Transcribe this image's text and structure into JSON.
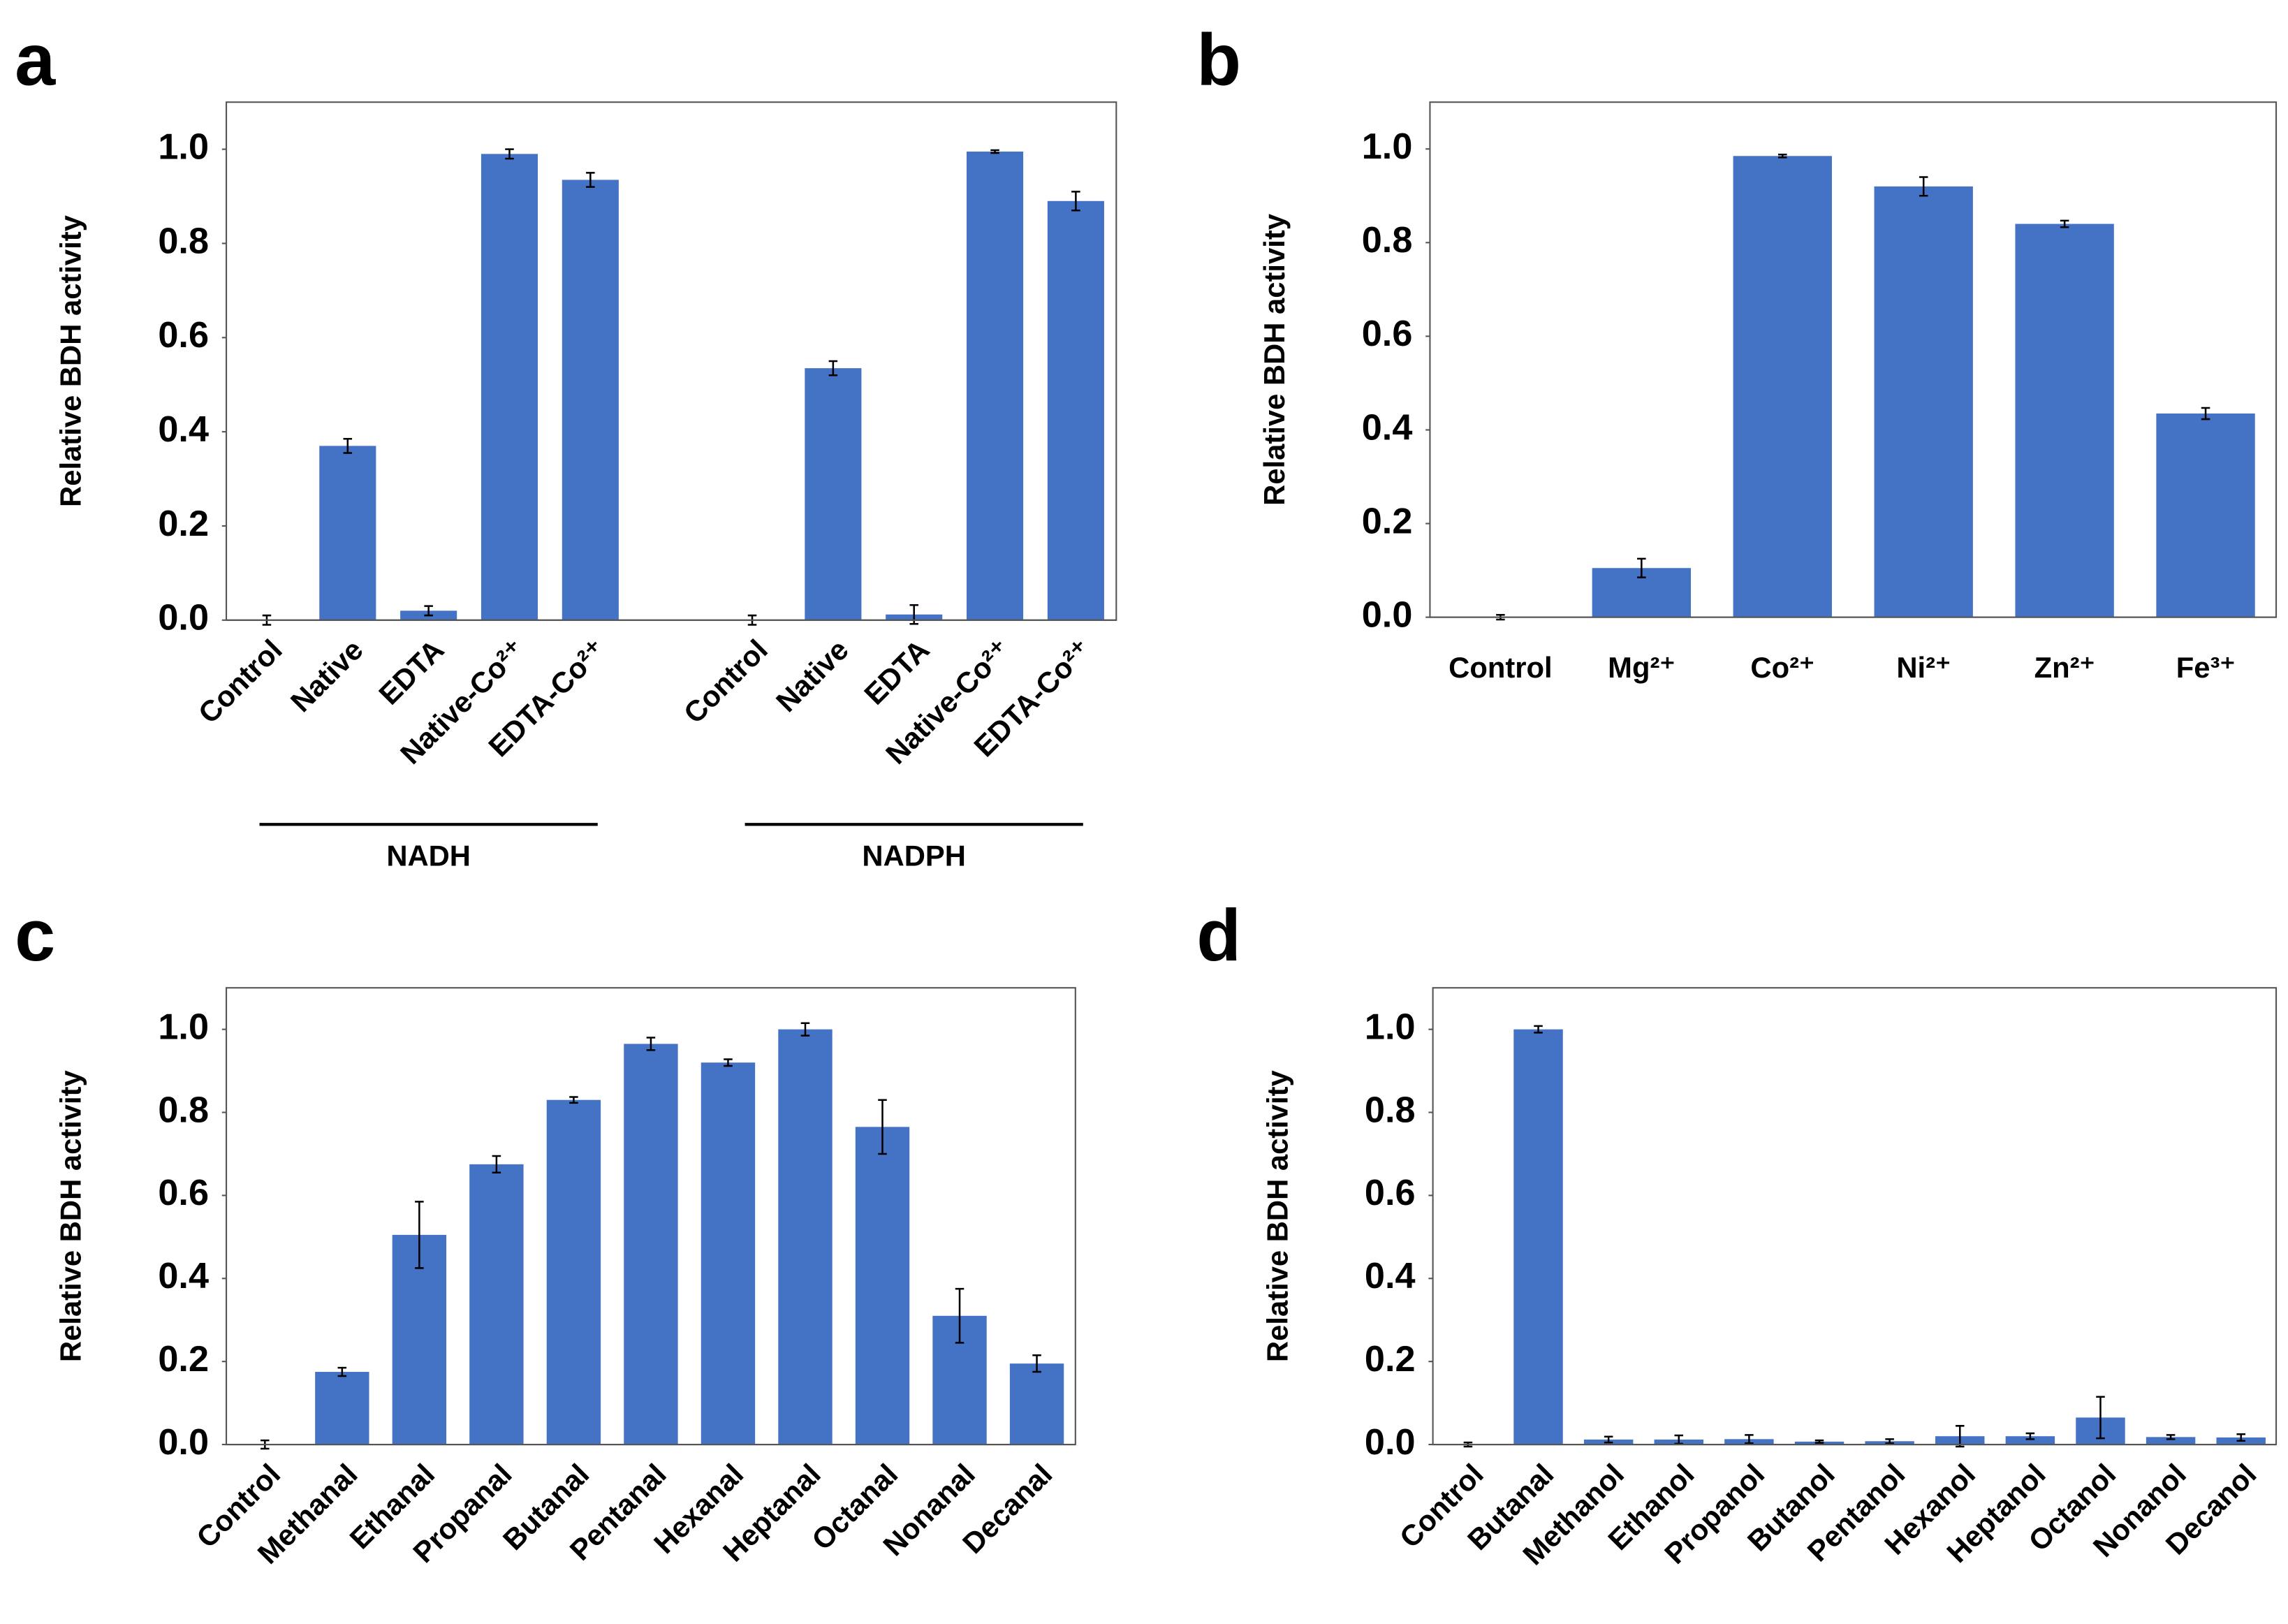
{
  "chart_data": [
    {
      "type": "bar",
      "panel": "a",
      "ylabel": "Relative BDH activity",
      "color": "#4472c4",
      "groups": [
        {
          "name": "NADH",
          "categories": [
            "Control",
            "Native",
            "EDTA",
            "Native-Co²⁺",
            "EDTA-Co²⁺"
          ],
          "values": [
            0,
            0.37,
            0.02,
            0.99,
            0.935
          ],
          "errors": [
            0.01,
            0.015,
            0.01,
            0.01,
            0.015
          ]
        },
        {
          "name": "NADPH",
          "categories": [
            "Control",
            "Native",
            "EDTA",
            "Native-Co²⁺",
            "EDTA-Co²⁺"
          ],
          "values": [
            0,
            0.535,
            0.012,
            0.995,
            0.89
          ],
          "errors": [
            0.01,
            0.015,
            0.02,
            0.003,
            0.02
          ]
        }
      ],
      "ylim": [
        0,
        1.1
      ],
      "yticks": [
        {
          "value": 0,
          "label": "0.0"
        },
        0.2,
        0.4,
        0.6,
        0.8,
        {
          "value": 1,
          "label": "1.0"
        }
      ],
      "grid": false
    },
    {
      "type": "bar",
      "panel": "b",
      "ylabel": "Relative BDH activity",
      "color": "#4472c4",
      "categories": [
        "Control",
        "Mg²⁺",
        "Co²⁺",
        "Ni²⁺",
        "Zn²⁺",
        "Fe³⁺"
      ],
      "values": [
        0,
        0.105,
        0.985,
        0.92,
        0.84,
        0.435
      ],
      "errors": [
        0.005,
        0.02,
        0.003,
        0.02,
        0.007,
        0.012
      ],
      "ylim": [
        0,
        1.1
      ],
      "yticks": [
        {
          "value": 0,
          "label": "0.0"
        },
        0.2,
        0.4,
        0.6,
        0.8,
        {
          "value": 1,
          "label": "1.0"
        }
      ],
      "grid": false
    },
    {
      "type": "bar",
      "panel": "c",
      "ylabel": "Relative BDH activity",
      "color": "#4472c4",
      "categories": [
        "Control",
        "Methanal",
        "Ethanal",
        "Propanal",
        "Butanal",
        "Pentanal",
        "Hexanal",
        "Heptanal",
        "Octanal",
        "Nonanal",
        "Decanal"
      ],
      "values": [
        0,
        0.175,
        0.505,
        0.675,
        0.83,
        0.965,
        0.92,
        1.0,
        0.765,
        0.31,
        0.195
      ],
      "errors": [
        0.01,
        0.01,
        0.08,
        0.02,
        0.007,
        0.015,
        0.008,
        0.015,
        0.065,
        0.065,
        0.02
      ],
      "ylim": [
        0,
        1.1
      ],
      "yticks": [
        {
          "value": 0,
          "label": "0.0"
        },
        0.2,
        0.4,
        0.6,
        0.8,
        {
          "value": 1,
          "label": "1.0"
        }
      ],
      "grid": false
    },
    {
      "type": "bar",
      "panel": "d",
      "ylabel": "Relative BDH activity",
      "color": "#4472c4",
      "categories": [
        "Control",
        "Butanal",
        "Methanol",
        "Ethanol",
        "Propanol",
        "Butanol",
        "Pentanol",
        "Hexanol",
        "Heptanol",
        "Octanol",
        "Nonanol",
        "Decanol"
      ],
      "values": [
        0,
        1.0,
        0.012,
        0.012,
        0.013,
        0.007,
        0.008,
        0.02,
        0.02,
        0.065,
        0.018,
        0.017
      ],
      "errors": [
        0.005,
        0.008,
        0.007,
        0.01,
        0.01,
        0.003,
        0.005,
        0.025,
        0.007,
        0.05,
        0.005,
        0.008
      ],
      "ylim": [
        0,
        1.1
      ],
      "yticks": [
        {
          "value": 0,
          "label": "0.0"
        },
        0.2,
        0.4,
        0.6,
        0.8,
        {
          "value": 1,
          "label": "1.0"
        }
      ],
      "grid": false
    }
  ]
}
